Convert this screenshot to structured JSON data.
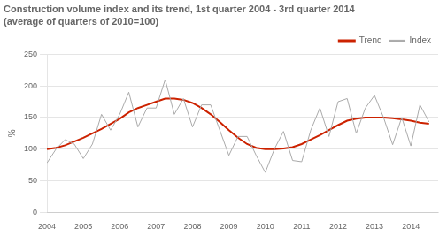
{
  "chart_data": {
    "type": "line",
    "title": "Construction volume index and its trend, 1st quarter 2004 - 3rd quarter 2014",
    "subtitle": "(average of quarters of 2010=100)",
    "ylabel": "%",
    "x": [
      2004.0,
      2004.25,
      2004.5,
      2004.75,
      2005.0,
      2005.25,
      2005.5,
      2005.75,
      2006.0,
      2006.25,
      2006.5,
      2006.75,
      2007.0,
      2007.25,
      2007.5,
      2007.75,
      2008.0,
      2008.25,
      2008.5,
      2008.75,
      2009.0,
      2009.25,
      2009.5,
      2009.75,
      2010.0,
      2010.25,
      2010.5,
      2010.75,
      2011.0,
      2011.25,
      2011.5,
      2011.75,
      2012.0,
      2012.25,
      2012.5,
      2012.75,
      2013.0,
      2013.25,
      2013.5,
      2013.75,
      2014.0,
      2014.25,
      2014.5
    ],
    "series": [
      {
        "name": "Index",
        "color": "#aaaaaa",
        "values": [
          78,
          100,
          115,
          108,
          85,
          108,
          155,
          130,
          155,
          190,
          135,
          165,
          165,
          210,
          155,
          180,
          135,
          170,
          170,
          130,
          90,
          120,
          120,
          90,
          63,
          100,
          128,
          82,
          80,
          130,
          165,
          120,
          175,
          180,
          125,
          165,
          185,
          150,
          107,
          150,
          105,
          170,
          143
        ]
      },
      {
        "name": "Trend",
        "color": "#cc2200",
        "values": [
          100,
          102,
          106,
          112,
          118,
          125,
          132,
          140,
          148,
          158,
          165,
          170,
          175,
          180,
          180,
          178,
          173,
          165,
          155,
          143,
          130,
          118,
          108,
          102,
          100,
          100,
          101,
          103,
          108,
          115,
          122,
          130,
          138,
          145,
          148,
          150,
          150,
          150,
          149,
          147,
          145,
          142,
          140
        ]
      }
    ],
    "xlim": [
      2004.0,
      2014.75
    ],
    "xticks": [
      2004,
      2005,
      2006,
      2007,
      2008,
      2009,
      2010,
      2011,
      2012,
      2013,
      2014
    ],
    "ylim": [
      0,
      250
    ],
    "yticks": [
      0,
      50,
      100,
      150,
      200,
      250
    ],
    "grid": "y",
    "legend": "upper right"
  }
}
